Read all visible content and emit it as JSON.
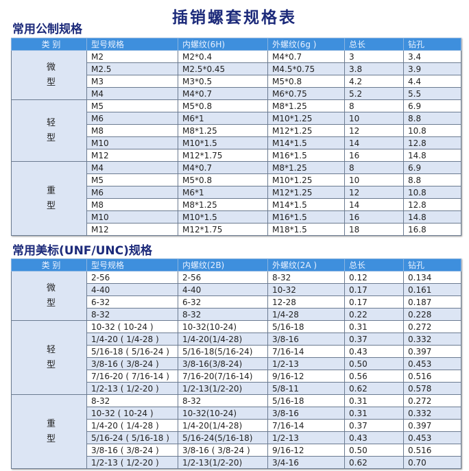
{
  "title": "插销螺套规格表",
  "colors": {
    "header": "#3e8fdd",
    "title": "#1c2a7a",
    "alt_row": "#dce5f4"
  },
  "metric": {
    "heading": "常用公制规格",
    "columns": [
      "类 别",
      "型号规格",
      "内螺纹(6H)",
      "外螺纹(6g )",
      "总长",
      "钻孔"
    ],
    "groups": [
      {
        "category": [
          "微",
          "型"
        ],
        "rows": [
          [
            "M2",
            "M2*0.4",
            "M4*0.7",
            "3",
            "3.4"
          ],
          [
            "M2.5",
            "M2.5*0.45",
            "M4.5*0.75",
            "3.8",
            "3.9"
          ],
          [
            "M3",
            "M3*0.5",
            "M5*0.8",
            "4.2",
            "4.4"
          ],
          [
            "M4",
            "M4*0.7",
            "M6*0.75",
            "5.2",
            "5.5"
          ]
        ]
      },
      {
        "category": [
          "轻",
          "型"
        ],
        "rows": [
          [
            "M5",
            "M5*0.8",
            "M8*1.25",
            "8",
            "6.9"
          ],
          [
            "M6",
            "M6*1",
            "M10*1.25",
            "10",
            "8.8"
          ],
          [
            "M8",
            "M8*1.25",
            "M12*1.25",
            "12",
            "10.8"
          ],
          [
            "M10",
            "M10*1.5",
            "M14*1.5",
            "14",
            "12.8"
          ],
          [
            "M12",
            "M12*1.75",
            "M16*1.5",
            "16",
            "14.8"
          ]
        ]
      },
      {
        "category": [
          "重",
          "型"
        ],
        "rows": [
          [
            "M4",
            "M4*0.7",
            "M8*1.25",
            "8",
            "6.9"
          ],
          [
            "M5",
            "M5*0.8",
            "M10*1.25",
            "10",
            "8.8"
          ],
          [
            "M6",
            "M6*1",
            "M12*1.25",
            "12",
            "10.8"
          ],
          [
            "M8",
            "M8*1.25",
            "M14*1.5",
            "14",
            "12.8"
          ],
          [
            "M10",
            "M10*1.5",
            "M16*1.5",
            "16",
            "14.8"
          ],
          [
            "M12",
            "M12*1.75",
            "M18*1.5",
            "18",
            "16.8"
          ]
        ]
      }
    ]
  },
  "unified": {
    "heading": "常用美标(UNF/UNC)规格",
    "columns": [
      "类 别",
      "型号规格",
      "内螺纹(2B)",
      "外螺纹(2A )",
      "总长",
      "钻孔"
    ],
    "groups": [
      {
        "category": [
          "微",
          "型"
        ],
        "rows": [
          [
            "2-56",
            "2-56",
            "8-32",
            "0.12",
            "0.134"
          ],
          [
            "4-40",
            "4-40",
            "10-32",
            "0.17",
            "0.161"
          ],
          [
            "6-32",
            "6-32",
            "12-28",
            "0.17",
            "0.187"
          ],
          [
            "8-32",
            "8-32",
            "1/4-28",
            "0.22",
            "0.228"
          ]
        ]
      },
      {
        "category": [
          "轻",
          "型"
        ],
        "rows": [
          [
            "10-32 ( 10-24 )",
            "10-32(10-24)",
            "5/16-18",
            "0.31",
            "0.272"
          ],
          [
            "1/4-20 ( 1/4-28 )",
            "1/4-20(1/4-28)",
            "3/8-16",
            "0.37",
            "0.332"
          ],
          [
            "5/16-18 ( 5/16-24 )",
            "5/16-18(5/16-24)",
            "7/16-14",
            "0.43",
            "0.397"
          ],
          [
            "3/8-16 ( 3/8-24 )",
            "3/8-16(3/8-24)",
            "1/2-13",
            "0.50",
            "0.453"
          ],
          [
            "7/16-20 ( 7/16-14 )",
            "7/16-20(7/16-14)",
            "9/16-12",
            "0.56",
            "0.516"
          ],
          [
            "1/2-13 ( 1/2-20 )",
            "1/2-13(1/2-20)",
            "5/8-11",
            "0.62",
            "0.578"
          ]
        ]
      },
      {
        "category": [
          "重",
          "型"
        ],
        "rows": [
          [
            "8-32",
            "8-32",
            "5/16-18",
            "0.31",
            "0.272"
          ],
          [
            "10-32 ( 10-24 )",
            "10-32(10-24)",
            "3/8-16",
            "0.31",
            "0.332"
          ],
          [
            "1/4-20 ( 1/4-28 )",
            "1/4-20(1/4-28)",
            "7/16-14",
            "0.37",
            "0.397"
          ],
          [
            "5/16-24 ( 5/16-18 )",
            "5/16-24(5/16-18)",
            "1/2-13",
            "0.43",
            "0.453"
          ],
          [
            "3/8-16 ( 3/8-24 )",
            "3/8-16 ( 3/8-24 )",
            "9/16-12",
            "0.50",
            "0.516"
          ],
          [
            "1/2-13 ( 1/2-20 )",
            "1/2-13(1/2-20)",
            "3/4-16",
            "0.62",
            "0.70"
          ]
        ]
      }
    ]
  }
}
